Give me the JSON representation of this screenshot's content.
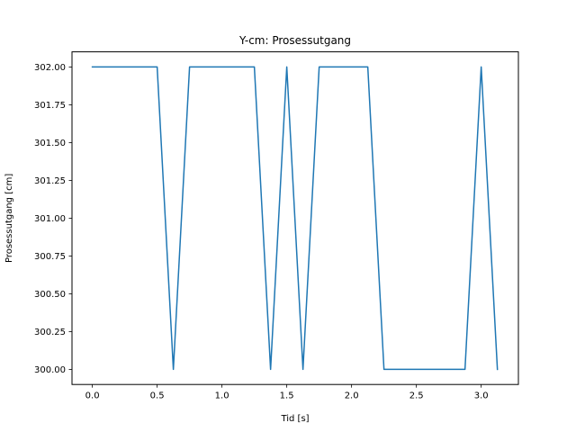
{
  "chart_data": {
    "type": "line",
    "title": "Y-cm: Prosessutgang",
    "xlabel": "Tid [s]",
    "ylabel": "Prosessutgang [cm]",
    "xlim": [
      -0.157,
      3.287
    ],
    "ylim": [
      299.9,
      302.1
    ],
    "xticks": [
      0.0,
      0.5,
      1.0,
      1.5,
      2.0,
      2.5,
      3.0
    ],
    "xtick_labels": [
      "0.0",
      "0.5",
      "1.0",
      "1.5",
      "2.0",
      "2.5",
      "3.0"
    ],
    "yticks": [
      300.0,
      300.25,
      300.5,
      300.75,
      301.0,
      301.25,
      301.5,
      301.75,
      302.0
    ],
    "ytick_labels": [
      "300.00",
      "300.25",
      "300.50",
      "300.75",
      "301.00",
      "301.25",
      "301.50",
      "301.75",
      "302.00"
    ],
    "grid": false,
    "series": [
      {
        "color": "#1f77b4",
        "x": [
          0.0,
          0.125,
          0.25,
          0.375,
          0.5,
          0.625,
          0.75,
          0.875,
          1.0,
          1.125,
          1.25,
          1.375,
          1.5,
          1.625,
          1.75,
          1.875,
          2.0,
          2.125,
          2.25,
          2.375,
          2.5,
          2.625,
          2.75,
          2.875,
          3.0,
          3.125
        ],
        "y": [
          302,
          302,
          302,
          302,
          302,
          300,
          302,
          302,
          302,
          302,
          302,
          300,
          302,
          300,
          302,
          302,
          302,
          302,
          300,
          300,
          300,
          300,
          300,
          300,
          302,
          300
        ]
      }
    ]
  }
}
